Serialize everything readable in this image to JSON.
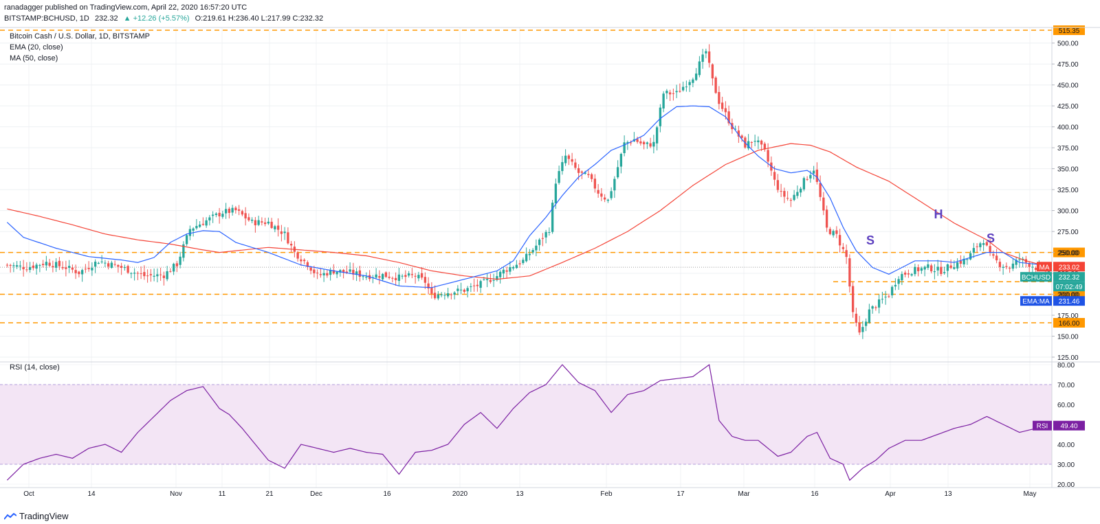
{
  "header": {
    "published_line": "ranadagger published on TradingView.com, April 22, 2020 16:57:20 UTC",
    "symbol": "BITSTAMP:BCHUSD, 1D",
    "last": "232.32",
    "change": "▲ +12.26 (+5.57%)",
    "ohlc": "O:219.61 H:236.40 L:217.99 C:232.32"
  },
  "legend": {
    "title": "Bitcoin Cash / U.S. Dollar, 1D, BITSTAMP",
    "ema": "EMA (20, close)",
    "ma": "MA (50, close)",
    "rsi": "RSI (14, close)"
  },
  "footer": {
    "brand": "TradingView"
  },
  "colors": {
    "up": "#26a69a",
    "down": "#ef5350",
    "ema": "#2962ff",
    "ma": "#f44336",
    "level": "#ff9800",
    "rsi": "#7b1fa2",
    "rsi_band": "#f3e5f5",
    "grid": "#eef0f3"
  },
  "chart_data": {
    "type": "line",
    "price_axis": {
      "min": 125,
      "max": 515.35,
      "ticks": [
        "125.00",
        "150.00",
        "175.00",
        "200.00",
        "225.00",
        "250.00",
        "275.00",
        "300.00",
        "325.00",
        "350.00",
        "375.00",
        "400.00",
        "425.00",
        "450.00",
        "475.00",
        "500.00"
      ]
    },
    "x_ticks": [
      "Oct",
      "14",
      "Nov",
      "11",
      "21",
      "Dec",
      "16",
      "2020",
      "13",
      "Feb",
      "17",
      "Mar",
      "16",
      "Apr",
      "13",
      "May"
    ],
    "levels": [
      {
        "value": 515.35,
        "label": "515.35"
      },
      {
        "value": 250,
        "label": "250.00"
      },
      {
        "value": 200,
        "label": "200.00"
      },
      {
        "value": 166,
        "label": "166.00"
      }
    ],
    "neckline": {
      "value": 215
    },
    "badges": {
      "ma": {
        "name": "MA",
        "value": "233.02"
      },
      "price": {
        "name": "BCHUSD",
        "value": "232.32"
      },
      "countdown": "07:02:49",
      "ema_ma": {
        "name": "EMA:MA",
        "value": "231.46"
      },
      "rsi": {
        "name": "RSI",
        "value": "49.40"
      }
    },
    "pattern_labels": [
      "S",
      "H",
      "S"
    ],
    "rsi_axis": {
      "min": 20,
      "max": 80,
      "ticks": [
        "20.00",
        "30.00",
        "40.00",
        "50.00",
        "60.00",
        "70.00",
        "80.00"
      ],
      "band": [
        30,
        70
      ]
    },
    "price_keys": [
      [
        0,
        235
      ],
      [
        6,
        232
      ],
      [
        12,
        238
      ],
      [
        18,
        232
      ],
      [
        22,
        226
      ],
      [
        28,
        240
      ],
      [
        35,
        232
      ],
      [
        42,
        222
      ],
      [
        48,
        223
      ],
      [
        52,
        236
      ],
      [
        56,
        278
      ],
      [
        62,
        290
      ],
      [
        66,
        298
      ],
      [
        70,
        300
      ],
      [
        75,
        286
      ],
      [
        80,
        286
      ],
      [
        85,
        272
      ],
      [
        88,
        250
      ],
      [
        92,
        236
      ],
      [
        95,
        222
      ],
      [
        100,
        228
      ],
      [
        105,
        226
      ],
      [
        110,
        222
      ],
      [
        115,
        223
      ],
      [
        120,
        220
      ],
      [
        125,
        222
      ],
      [
        128,
        215
      ],
      [
        130,
        198
      ],
      [
        134,
        202
      ],
      [
        140,
        205
      ],
      [
        145,
        212
      ],
      [
        150,
        222
      ],
      [
        152,
        228
      ],
      [
        158,
        240
      ],
      [
        162,
        258
      ],
      [
        166,
        278
      ],
      [
        168,
        335
      ],
      [
        171,
        365
      ],
      [
        175,
        345
      ],
      [
        178,
        340
      ],
      [
        181,
        322
      ],
      [
        184,
        312
      ],
      [
        186,
        338
      ],
      [
        189,
        380
      ],
      [
        192,
        385
      ],
      [
        195,
        378
      ],
      [
        198,
        380
      ],
      [
        201,
        440
      ],
      [
        205,
        440
      ],
      [
        210,
        460
      ],
      [
        214,
        490
      ],
      [
        216,
        455
      ],
      [
        218,
        430
      ],
      [
        222,
        400
      ],
      [
        226,
        378
      ],
      [
        229,
        385
      ],
      [
        232,
        370
      ],
      [
        235,
        335
      ],
      [
        237,
        320
      ],
      [
        240,
        312
      ],
      [
        243,
        330
      ],
      [
        247,
        350
      ],
      [
        249,
        315
      ],
      [
        251,
        278
      ],
      [
        254,
        270
      ],
      [
        257,
        244
      ],
      [
        259,
        175
      ],
      [
        261,
        152
      ],
      [
        264,
        180
      ],
      [
        267,
        190
      ],
      [
        270,
        200
      ],
      [
        273,
        222
      ],
      [
        277,
        228
      ],
      [
        282,
        232
      ],
      [
        286,
        228
      ],
      [
        290,
        236
      ],
      [
        294,
        242
      ],
      [
        297,
        258
      ],
      [
        299,
        265
      ],
      [
        301,
        246
      ],
      [
        304,
        236
      ],
      [
        307,
        232
      ],
      [
        310,
        242
      ],
      [
        313,
        236
      ],
      [
        316,
        230
      ],
      [
        318,
        228
      ],
      [
        319,
        232
      ]
    ],
    "ema_keys": [
      [
        0,
        286
      ],
      [
        5,
        268
      ],
      [
        15,
        255
      ],
      [
        25,
        245
      ],
      [
        35,
        241
      ],
      [
        40,
        238
      ],
      [
        45,
        244
      ],
      [
        50,
        262
      ],
      [
        55,
        272
      ],
      [
        60,
        276
      ],
      [
        65,
        275
      ],
      [
        70,
        262
      ],
      [
        80,
        250
      ],
      [
        90,
        235
      ],
      [
        100,
        228
      ],
      [
        110,
        222
      ],
      [
        120,
        210
      ],
      [
        130,
        208
      ],
      [
        140,
        218
      ],
      [
        150,
        228
      ],
      [
        155,
        240
      ],
      [
        160,
        270
      ],
      [
        165,
        292
      ],
      [
        170,
        318
      ],
      [
        175,
        340
      ],
      [
        180,
        355
      ],
      [
        185,
        372
      ],
      [
        190,
        380
      ],
      [
        195,
        390
      ],
      [
        200,
        410
      ],
      [
        205,
        424
      ],
      [
        210,
        425
      ],
      [
        215,
        424
      ],
      [
        220,
        412
      ],
      [
        225,
        385
      ],
      [
        230,
        365
      ],
      [
        235,
        350
      ],
      [
        240,
        345
      ],
      [
        245,
        348
      ],
      [
        248,
        340
      ],
      [
        252,
        315
      ],
      [
        256,
        280
      ],
      [
        260,
        252
      ],
      [
        265,
        232
      ],
      [
        270,
        224
      ],
      [
        278,
        240
      ],
      [
        285,
        240
      ],
      [
        290,
        238
      ],
      [
        295,
        244
      ],
      [
        300,
        250
      ],
      [
        305,
        250
      ],
      [
        310,
        238
      ],
      [
        315,
        236
      ],
      [
        319,
        231.46
      ]
    ],
    "ma_keys": [
      [
        0,
        302
      ],
      [
        10,
        293
      ],
      [
        20,
        283
      ],
      [
        30,
        272
      ],
      [
        40,
        265
      ],
      [
        50,
        260
      ],
      [
        60,
        253
      ],
      [
        65,
        250
      ],
      [
        70,
        252
      ],
      [
        80,
        256
      ],
      [
        90,
        253
      ],
      [
        100,
        250
      ],
      [
        110,
        246
      ],
      [
        120,
        238
      ],
      [
        130,
        228
      ],
      [
        140,
        222
      ],
      [
        150,
        218
      ],
      [
        160,
        222
      ],
      [
        170,
        238
      ],
      [
        180,
        255
      ],
      [
        190,
        275
      ],
      [
        200,
        300
      ],
      [
        210,
        330
      ],
      [
        220,
        355
      ],
      [
        230,
        372
      ],
      [
        240,
        380
      ],
      [
        246,
        378
      ],
      [
        252,
        370
      ],
      [
        260,
        352
      ],
      [
        270,
        335
      ],
      [
        280,
        310
      ],
      [
        290,
        285
      ],
      [
        300,
        265
      ],
      [
        305,
        250
      ],
      [
        312,
        240
      ],
      [
        319,
        233.02
      ]
    ],
    "rsi_keys": [
      [
        0,
        22
      ],
      [
        5,
        30
      ],
      [
        10,
        33
      ],
      [
        15,
        35
      ],
      [
        20,
        33
      ],
      [
        25,
        38
      ],
      [
        30,
        40
      ],
      [
        35,
        36
      ],
      [
        40,
        46
      ],
      [
        45,
        54
      ],
      [
        50,
        62
      ],
      [
        55,
        67
      ],
      [
        60,
        69
      ],
      [
        65,
        58
      ],
      [
        68,
        55
      ],
      [
        72,
        48
      ],
      [
        76,
        40
      ],
      [
        80,
        32
      ],
      [
        85,
        28
      ],
      [
        90,
        40
      ],
      [
        95,
        38
      ],
      [
        100,
        36
      ],
      [
        105,
        38
      ],
      [
        110,
        36
      ],
      [
        115,
        35
      ],
      [
        120,
        25
      ],
      [
        125,
        36
      ],
      [
        130,
        37
      ],
      [
        135,
        40
      ],
      [
        140,
        50
      ],
      [
        145,
        56
      ],
      [
        150,
        48
      ],
      [
        155,
        58
      ],
      [
        160,
        66
      ],
      [
        165,
        70
      ],
      [
        170,
        80
      ],
      [
        175,
        71
      ],
      [
        180,
        67
      ],
      [
        185,
        56
      ],
      [
        190,
        65
      ],
      [
        195,
        67
      ],
      [
        200,
        72
      ],
      [
        205,
        73
      ],
      [
        210,
        74
      ],
      [
        215,
        80
      ],
      [
        218,
        52
      ],
      [
        222,
        44
      ],
      [
        226,
        42
      ],
      [
        230,
        42
      ],
      [
        236,
        34
      ],
      [
        240,
        36
      ],
      [
        245,
        44
      ],
      [
        248,
        46
      ],
      [
        252,
        33
      ],
      [
        256,
        30
      ],
      [
        258,
        22
      ],
      [
        262,
        28
      ],
      [
        266,
        32
      ],
      [
        270,
        38
      ],
      [
        275,
        42
      ],
      [
        280,
        42
      ],
      [
        285,
        45
      ],
      [
        290,
        48
      ],
      [
        295,
        50
      ],
      [
        300,
        54
      ],
      [
        305,
        50
      ],
      [
        310,
        46
      ],
      [
        315,
        48
      ],
      [
        319,
        49.4
      ]
    ]
  }
}
